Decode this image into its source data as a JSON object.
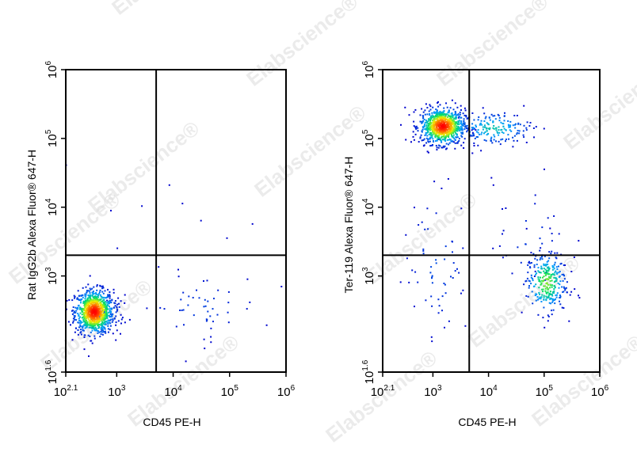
{
  "watermark": {
    "text": "Elabscience",
    "mark": "®"
  },
  "chart_data": [
    {
      "type": "scatter",
      "subtype": "flow-cytometry-density-dot-plot",
      "title": "",
      "xlabel": "CD45 PE-H",
      "ylabel": "Rat IgG2b Alexa Fluor® 647-H",
      "xscale": "log",
      "yscale": "log",
      "xlim": [
        125,
        1000000
      ],
      "ylim": [
        40,
        1000000
      ],
      "x_ticks": [
        {
          "base": "10",
          "exp": "2.1"
        },
        {
          "base": "10",
          "exp": "3"
        },
        {
          "base": "10",
          "exp": "4"
        },
        {
          "base": "10",
          "exp": "5"
        },
        {
          "base": "10",
          "exp": "6"
        }
      ],
      "y_ticks": [
        {
          "base": "10",
          "exp": "1.6"
        },
        {
          "base": "10",
          "exp": "3"
        },
        {
          "base": "10",
          "exp": "4"
        },
        {
          "base": "10",
          "exp": "5"
        },
        {
          "base": "10",
          "exp": "6"
        }
      ],
      "gate": {
        "x": 5000,
        "y": 2000
      },
      "populations": [
        {
          "cx": 400,
          "cy": 300,
          "sx": 0.17,
          "sy": 0.16,
          "n": 900
        },
        {
          "cx": 700,
          "cy": 300,
          "sx": 0.18,
          "sy": 0.12,
          "n": 60
        },
        {
          "cx": 30000,
          "cy": 350,
          "sx": 0.55,
          "sy": 0.25,
          "n": 50
        },
        {
          "cx": 5000,
          "cy": 4000,
          "sx": 1.0,
          "sy": 0.45,
          "n": 10
        }
      ],
      "grid": false
    },
    {
      "type": "scatter",
      "subtype": "flow-cytometry-density-dot-plot",
      "title": "",
      "xlabel": "CD45 PE-H",
      "ylabel": "Ter-119 Alexa Fluor® 647-H",
      "xscale": "log",
      "yscale": "log",
      "xlim": [
        125,
        1000000
      ],
      "ylim": [
        40,
        1000000
      ],
      "x_ticks": [
        {
          "base": "10",
          "exp": "2.1"
        },
        {
          "base": "10",
          "exp": "3"
        },
        {
          "base": "10",
          "exp": "4"
        },
        {
          "base": "10",
          "exp": "5"
        },
        {
          "base": "10",
          "exp": "6"
        }
      ],
      "y_ticks": [
        {
          "base": "10",
          "exp": "1.6"
        },
        {
          "base": "10",
          "exp": "3"
        },
        {
          "base": "10",
          "exp": "4"
        },
        {
          "base": "10",
          "exp": "5"
        },
        {
          "base": "10",
          "exp": "6"
        }
      ],
      "gate": {
        "x": 4500,
        "y": 2000
      },
      "populations": [
        {
          "cx": 1500,
          "cy": 150000,
          "sx": 0.2,
          "sy": 0.13,
          "n": 850
        },
        {
          "cx": 12000,
          "cy": 140000,
          "sx": 0.35,
          "sy": 0.12,
          "n": 180
        },
        {
          "cx": 110000,
          "cy": 800,
          "sx": 0.18,
          "sy": 0.22,
          "n": 280
        },
        {
          "cx": 60000,
          "cy": 3000,
          "sx": 0.35,
          "sy": 0.45,
          "n": 45
        },
        {
          "cx": 1200,
          "cy": 1500,
          "sx": 0.3,
          "sy": 0.55,
          "n": 60
        }
      ],
      "grid": false
    }
  ]
}
